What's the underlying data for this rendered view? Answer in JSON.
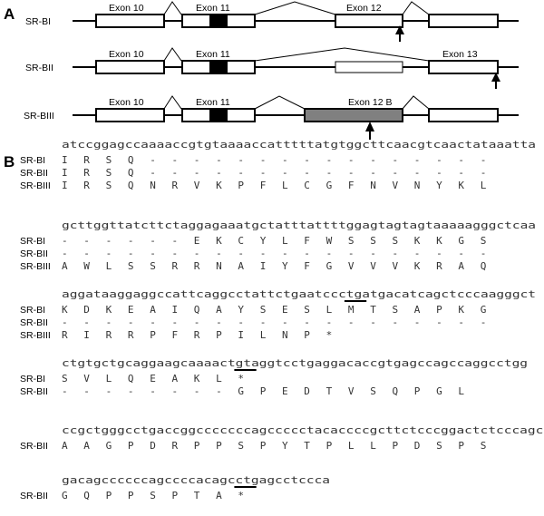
{
  "panel_a": {
    "label": "A",
    "isoforms": [
      {
        "name": "SR-BI",
        "exons": [
          {
            "label": "Exon 10",
            "fill": "#ffffff"
          },
          {
            "label": "Exon 11",
            "fill": "#ffffff",
            "insert": "#000000"
          },
          {
            "label": "Exon 12",
            "fill": "#ffffff"
          },
          {
            "label": "",
            "fill": "#ffffff"
          }
        ],
        "arrow": true
      },
      {
        "name": "SR-BII",
        "exons": [
          {
            "label": "Exon 10",
            "fill": "#ffffff"
          },
          {
            "label": "Exon 11",
            "fill": "#ffffff",
            "insert": "#000000"
          },
          {
            "label": "",
            "fill": "#ffffff",
            "thin": true
          },
          {
            "label": "Exon 13",
            "fill": "#ffffff"
          }
        ],
        "arrow": true
      },
      {
        "name": "SR-BIII",
        "exons": [
          {
            "label": "Exon 10",
            "fill": "#ffffff"
          },
          {
            "label": "Exon 11",
            "fill": "#ffffff",
            "insert": "#000000"
          },
          {
            "label": "Exon 12 B",
            "fill": "#808080"
          },
          {
            "label": "",
            "fill": "#ffffff"
          }
        ],
        "arrow": true
      }
    ]
  },
  "panel_b": {
    "label": "B",
    "blocks": [
      {
        "dna": "atccggagccaaaaccgtgtaaaaccatttttatgtggcttcaacgtcaactataaatta",
        "underline": [],
        "rows": [
          {
            "label": "SR-BI",
            "aa": [
              "I",
              "R",
              "S",
              "Q",
              "-",
              "-",
              "-",
              "-",
              "-",
              "-",
              "-",
              "-",
              "-",
              "-",
              "-",
              "-",
              "-",
              "-",
              "-",
              "-"
            ]
          },
          {
            "label": "SR-BII",
            "aa": [
              "I",
              "R",
              "S",
              "Q",
              "-",
              "-",
              "-",
              "-",
              "-",
              "-",
              "-",
              "-",
              "-",
              "-",
              "-",
              "-",
              "-",
              "-",
              "-",
              "-"
            ]
          },
          {
            "label": "SR-BIII",
            "aa": [
              "I",
              "R",
              "S",
              "Q",
              "N",
              "R",
              "V",
              "K",
              "P",
              "F",
              "L",
              "C",
              "G",
              "F",
              "N",
              "V",
              "N",
              "Y",
              "K",
              "L"
            ]
          }
        ]
      },
      {
        "dna": "gcttggttatcttctaggagaaatgctatttattttggagtagtagtaaaaagggctcaa",
        "underline": [],
        "rows": [
          {
            "label": "SR-BI",
            "aa": [
              "-",
              "-",
              "-",
              "-",
              "-",
              "-",
              "E",
              "K",
              "C",
              "Y",
              "L",
              "F",
              "W",
              "S",
              "S",
              "S",
              "K",
              "K",
              "G",
              "S"
            ]
          },
          {
            "label": "SR-BII",
            "aa": [
              "-",
              "-",
              "-",
              "-",
              "-",
              "-",
              "-",
              "-",
              "-",
              "-",
              "-",
              "-",
              "-",
              "-",
              "-",
              "-",
              "-",
              "-",
              "-",
              "-"
            ]
          },
          {
            "label": "SR-BIII",
            "aa": [
              "A",
              "W",
              "L",
              "S",
              "S",
              "R",
              "R",
              "N",
              "A",
              "I",
              "Y",
              "F",
              "G",
              "V",
              "V",
              "V",
              "K",
              "R",
              "A",
              "Q"
            ]
          }
        ]
      },
      {
        "dna": "aggataaggaggccattcaggcctattctgaatccctgatgacatcagctcccaagggct",
        "underline": [
          13
        ],
        "rows": [
          {
            "label": "SR-BI",
            "aa": [
              "K",
              "D",
              "K",
              "E",
              "A",
              "I",
              "Q",
              "A",
              "Y",
              "S",
              "E",
              "S",
              "L",
              "M",
              "T",
              "S",
              "A",
              "P",
              "K",
              "G"
            ]
          },
          {
            "label": "SR-BII",
            "aa": [
              "-",
              "-",
              "-",
              "-",
              "-",
              "-",
              "-",
              "-",
              "-",
              "-",
              "-",
              "-",
              "-",
              "-",
              "-",
              "-",
              "-",
              "-",
              "-",
              "-"
            ]
          },
          {
            "label": "SR-BIII",
            "aa": [
              "R",
              "I",
              "R",
              "R",
              "P",
              "F",
              "R",
              "P",
              "I",
              "L",
              "N",
              "P",
              "*",
              "",
              "",
              "",
              "",
              "",
              "",
              ""
            ]
          }
        ]
      },
      {
        "dna": "ctgtgctgcaggaagcaaaactgtaggtcctgaggacaccgtgagccagccaggcctgg",
        "underline": [
          8
        ],
        "rows": [
          {
            "label": "SR-BI",
            "aa": [
              "S",
              "V",
              "L",
              "Q",
              "E",
              "A",
              "K",
              "L",
              "*",
              "",
              "",
              "",
              "",
              "",
              "",
              "",
              "",
              "",
              "",
              ""
            ]
          },
          {
            "label": "SR-BII",
            "aa": [
              "-",
              "-",
              "-",
              "-",
              "-",
              "-",
              "-",
              "-",
              "G",
              "P",
              "E",
              "D",
              "T",
              "V",
              "S",
              "Q",
              "P",
              "G",
              "L",
              ""
            ]
          }
        ]
      },
      {
        "dna": "ccgctgggcctgaccggcccccccagccccctacaccccgcttctcccggactctcccagcg",
        "underline": [],
        "rows": [
          {
            "label": "SR-BII",
            "aa": [
              "A",
              "A",
              "G",
              "P",
              "D",
              "R",
              "P",
              "P",
              "S",
              "P",
              "Y",
              "T",
              "P",
              "L",
              "L",
              "P",
              "D",
              "S",
              "P",
              "S"
            ]
          }
        ]
      },
      {
        "dna": "gacagccccccagccccacagcctgagcctccca",
        "underline": [
          8
        ],
        "rows": [
          {
            "label": "SR-BII",
            "aa": [
              "G",
              "Q",
              "P",
              "P",
              "S",
              "P",
              "T",
              "A",
              "*"
            ]
          }
        ]
      }
    ]
  }
}
